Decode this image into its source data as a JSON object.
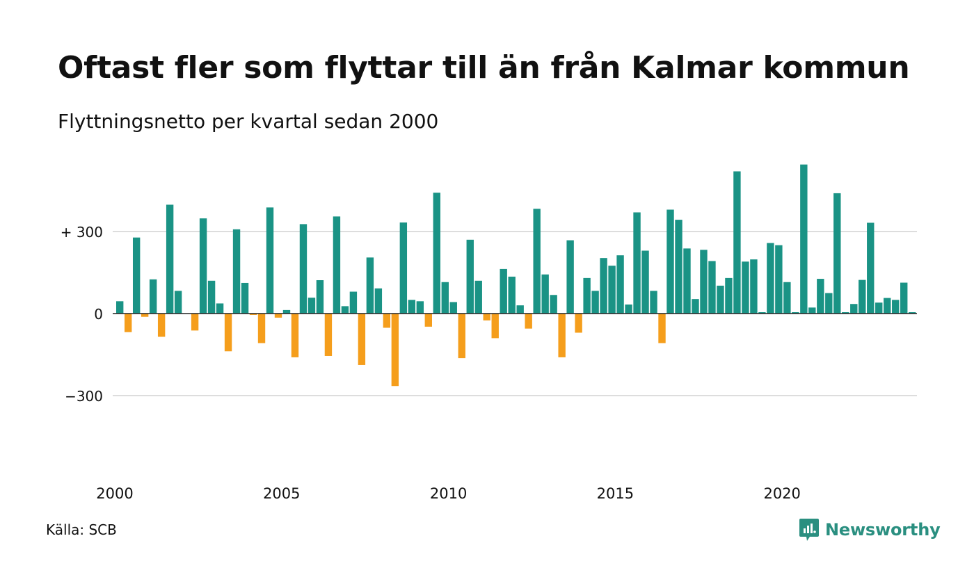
{
  "chart_data": {
    "type": "bar",
    "title": "Oftast fler som flyttar till än från Kalmar kommun",
    "subtitle": "Flyttningsnetto per kvartal sedan 2000",
    "x_start": "2000 Q1",
    "x_end": "2023 Q4",
    "frequency": "quarterly",
    "xticks": [
      "2000",
      "2005",
      "2010",
      "2015",
      "2020"
    ],
    "yticks": [
      {
        "value": 300,
        "label": "+ 300"
      },
      {
        "value": 0,
        "label": "0"
      },
      {
        "value": -300,
        "label": "−300"
      }
    ],
    "ylim": [
      -570,
      580
    ],
    "grid": true,
    "legend": "none",
    "colors": {
      "positive": "#1a9385",
      "negative": "#f59e1c"
    },
    "values": [
      45,
      -68,
      278,
      -12,
      125,
      -85,
      398,
      83,
      0,
      -62,
      348,
      120,
      37,
      -138,
      308,
      112,
      -5,
      -108,
      388,
      -15,
      13,
      -160,
      327,
      58,
      122,
      -155,
      355,
      27,
      80,
      -188,
      205,
      92,
      -52,
      -265,
      333,
      50,
      45,
      -48,
      442,
      115,
      42,
      -163,
      270,
      120,
      -25,
      -90,
      163,
      135,
      30,
      -55,
      383,
      143,
      68,
      -160,
      268,
      -70,
      130,
      83,
      203,
      175,
      213,
      33,
      370,
      230,
      83,
      -108,
      380,
      343,
      238,
      53,
      233,
      192,
      102,
      130,
      520,
      190,
      198,
      5,
      258,
      250,
      115,
      5,
      545,
      22,
      127,
      75,
      440,
      5,
      35,
      123,
      332,
      40,
      57,
      50,
      113,
      5
    ]
  },
  "footer": {
    "source": "Källa: SCB",
    "brand": "Newsworthy"
  }
}
